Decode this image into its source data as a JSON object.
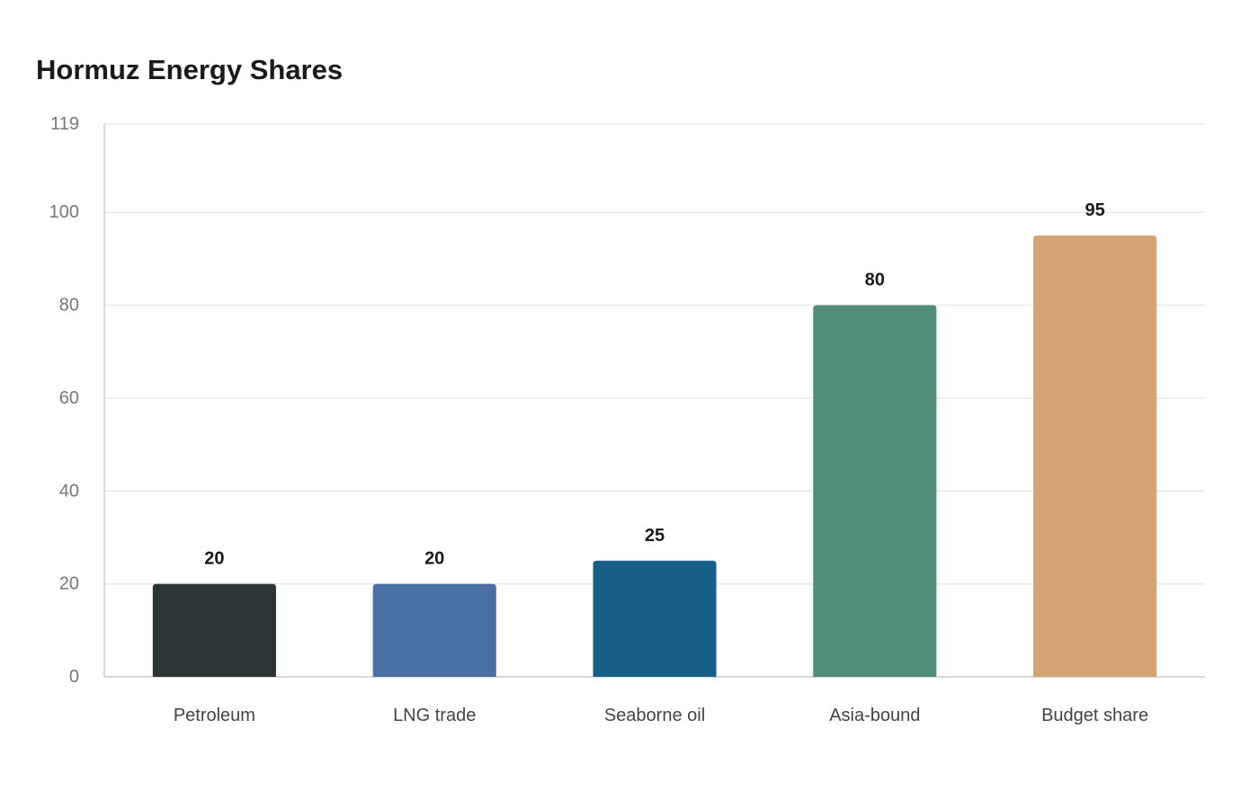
{
  "chart_data": {
    "type": "bar",
    "title": "Hormuz Energy Shares",
    "xlabel": "",
    "ylabel": "",
    "categories": [
      "Petroleum",
      "LNG trade",
      "Seaborne oil",
      "Asia-bound",
      "Budget share"
    ],
    "values": [
      20,
      20,
      25,
      80,
      95
    ],
    "colors": [
      "#2d3436",
      "#4a6fa5",
      "#166088",
      "#4f8c7a",
      "#d4a373"
    ],
    "ylim": [
      0,
      119
    ],
    "yticks": [
      0,
      20,
      40,
      60,
      80,
      100,
      119
    ],
    "grid": true,
    "legend": "none",
    "gridline_color": "#e8e8e8",
    "axis_color": "#cccccc"
  }
}
